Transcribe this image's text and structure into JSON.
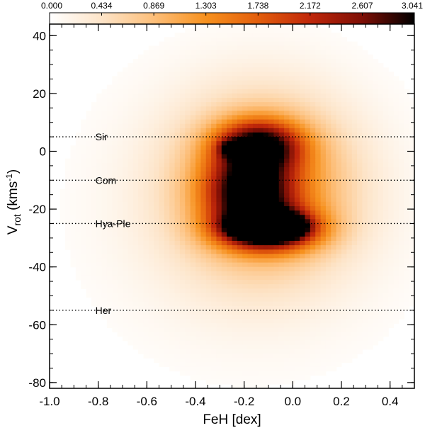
{
  "chart_data": {
    "type": "heatmap",
    "title": "",
    "xlabel": "FeH [dex]",
    "ylabel_main": "V",
    "ylabel_sub": "rot",
    "ylabel_unit_pre": " (kms",
    "ylabel_unit_sup": "-1",
    "ylabel_unit_post": ")",
    "xlim": [
      -1.0,
      0.5
    ],
    "ylim": [
      -82,
      44
    ],
    "x_ticks": [
      -1.0,
      -0.8,
      -0.6,
      -0.4,
      -0.2,
      0.0,
      0.2,
      0.4
    ],
    "x_tick_labels": [
      "-1.0",
      "-0.8",
      "-0.6",
      "-0.4",
      "-0.2",
      "0.0",
      "0.2",
      "0.4"
    ],
    "y_ticks": [
      40,
      20,
      0,
      -20,
      -40,
      -60,
      -80
    ],
    "y_tick_labels": [
      "40",
      "20",
      "0",
      "-20",
      "-40",
      "-60",
      "-80"
    ],
    "colorbar": {
      "range": [
        0.0,
        3.041
      ],
      "ticks": [
        0.0,
        0.434,
        0.869,
        1.303,
        1.738,
        2.172,
        2.607,
        3.041
      ],
      "tick_labels": [
        "0.000",
        "0.434",
        "0.869",
        "1.303",
        "1.738",
        "2.172",
        "2.607",
        "3.041"
      ],
      "colormap": [
        "#ffffff",
        "#fde4c8",
        "#fdbf7a",
        "#f7911e",
        "#e35e0c",
        "#c0270a",
        "#7e0f06",
        "#000000"
      ]
    },
    "density_components": [
      {
        "x": -0.15,
        "y": -26,
        "sx": 0.07,
        "sy": 2.5,
        "amp": 0.9
      },
      {
        "x": -0.04,
        "y": -26,
        "sx": 0.06,
        "sy": 2.5,
        "amp": 0.9
      },
      {
        "x": -0.1,
        "y": -27,
        "sx": 0.14,
        "sy": 5.0,
        "amp": 1.0
      },
      {
        "x": -0.18,
        "y": -14,
        "sx": 0.12,
        "sy": 8.0,
        "amp": 0.8
      },
      {
        "x": -0.14,
        "y": 2,
        "sx": 0.12,
        "sy": 6.0,
        "amp": 0.85
      },
      {
        "x": -0.26,
        "y": 1,
        "sx": 0.03,
        "sy": 2.0,
        "amp": 0.4
      },
      {
        "x": -0.12,
        "y": -12,
        "sx": 0.24,
        "sy": 20.0,
        "amp": 0.5
      },
      {
        "x": -0.18,
        "y": -20,
        "sx": 0.4,
        "sy": 32.0,
        "amp": 0.12
      }
    ],
    "reference_lines": [
      {
        "label": "Sir",
        "y": 5
      },
      {
        "label": "Com",
        "y": -10
      },
      {
        "label": "Hya-Ple",
        "y": -25
      },
      {
        "label": "Her",
        "y": -55
      }
    ],
    "reference_label_x": -0.8
  }
}
